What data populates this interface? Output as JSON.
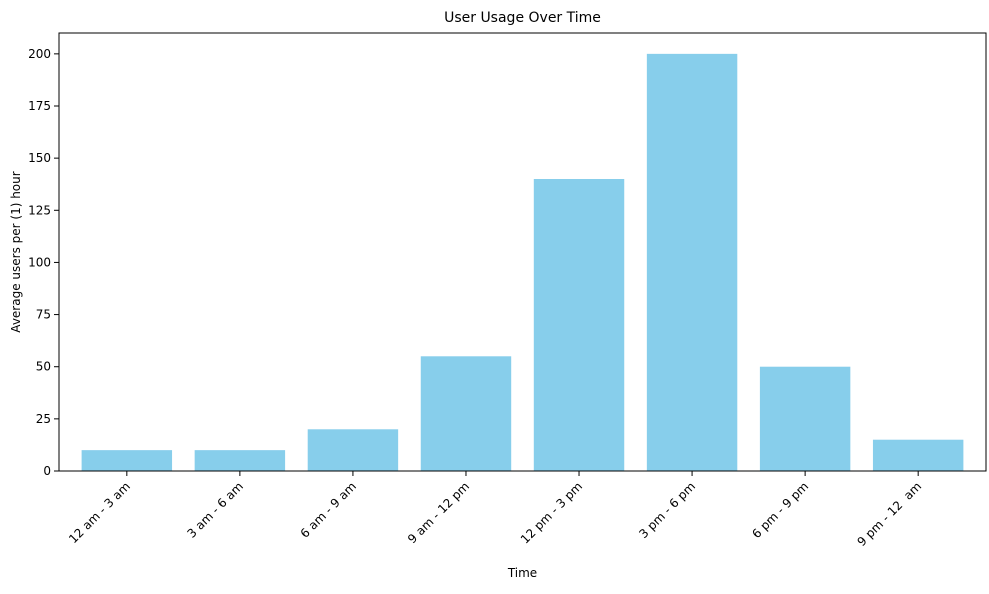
{
  "chart_data": {
    "type": "bar",
    "title": "User Usage Over Time",
    "xlabel": "Time",
    "ylabel": "Average users per (1) hour",
    "categories": [
      "12 am - 3 am",
      "3 am - 6 am",
      "6 am - 9 am",
      "9 am - 12 pm",
      "12 pm - 3 pm",
      "3 pm - 6 pm",
      "6 pm - 9 pm",
      "9 pm - 12  am"
    ],
    "values": [
      10,
      10,
      20,
      55,
      140,
      200,
      50,
      15
    ],
    "ylim": [
      0,
      210
    ],
    "yticks": [
      0,
      25,
      50,
      75,
      100,
      125,
      150,
      175,
      200
    ],
    "bar_color": "#87CEEB",
    "grid": false,
    "legend": false
  }
}
